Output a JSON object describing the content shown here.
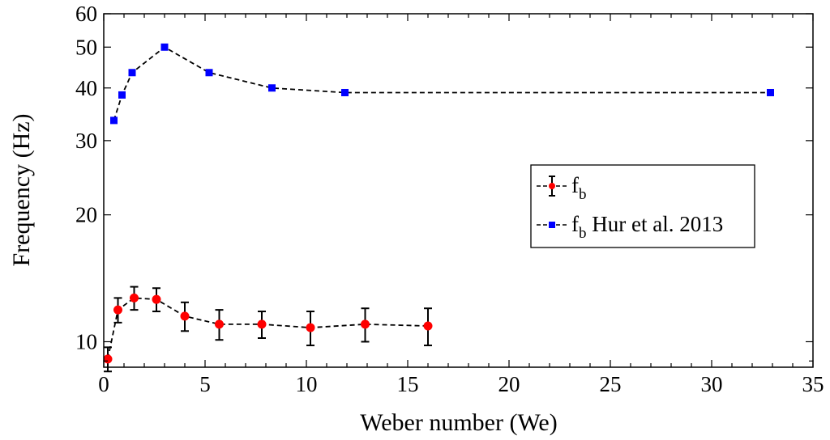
{
  "chart_data": {
    "type": "scatter",
    "xlabel": "Weber number (We)",
    "ylabel": "Frequency (Hz)",
    "xlim": [
      0,
      35
    ],
    "ylim": [
      8.7,
      60
    ],
    "y_scale": "log",
    "x_ticks": [
      0,
      5,
      10,
      15,
      20,
      25,
      30,
      35
    ],
    "y_ticks": [
      10,
      20,
      30,
      40,
      50,
      60
    ],
    "grid": false,
    "legend_position": "right",
    "series": [
      {
        "legend_main": "f",
        "legend_sub": "b",
        "legend_rest": "",
        "marker": "circle",
        "color": "#ff0000",
        "line": "dashed",
        "x": [
          0.2,
          0.7,
          1.5,
          2.6,
          4.0,
          5.7,
          7.8,
          10.2,
          12.9,
          16.0
        ],
        "y": [
          9.1,
          11.9,
          12.7,
          12.6,
          11.5,
          11.0,
          11.0,
          10.8,
          11.0,
          10.9
        ],
        "err": [
          0.6,
          0.8,
          0.8,
          0.8,
          0.9,
          0.9,
          0.8,
          1.0,
          1.0,
          1.1
        ]
      },
      {
        "legend_main": "f",
        "legend_sub": "b",
        "legend_rest": " Hur et al. 2013",
        "marker": "square",
        "color": "#0000ff",
        "line": "dashed",
        "x": [
          0.5,
          0.9,
          1.4,
          3.0,
          5.2,
          8.3,
          11.9,
          32.9
        ],
        "y": [
          33.5,
          38.5,
          43.5,
          50.0,
          43.5,
          40.0,
          39.0,
          39.0
        ]
      }
    ]
  }
}
